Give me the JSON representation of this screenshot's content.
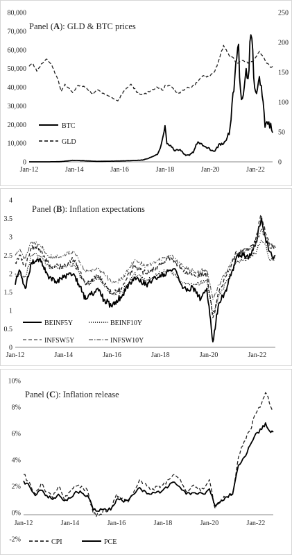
{
  "chart_data": [
    {
      "type": "line",
      "panel_letter": "A",
      "title_prefix": "Panel (",
      "title_suffix": "): GLD & BTC prices",
      "x_ticks": [
        "Jan-12",
        "Jan-14",
        "Jan-16",
        "Jan-18",
        "Jan-20",
        "Jan-22"
      ],
      "ylim": [
        0,
        80000
      ],
      "y_ticks": [
        "0",
        "10,000",
        "20,000",
        "30,000",
        "40,000",
        "50,000",
        "60,000",
        "70,000",
        "80,000"
      ],
      "y2lim": [
        0,
        250
      ],
      "y2_ticks": [
        "0",
        "50",
        "100",
        "150",
        "200",
        "250"
      ],
      "legend": [
        "BTC",
        "GLD"
      ],
      "series": [
        {
          "name": "BTC",
          "axis": "left",
          "style": "solid",
          "x": [
            "2012-01",
            "2013-01",
            "2013-06",
            "2013-12",
            "2014-06",
            "2015-01",
            "2016-01",
            "2016-06",
            "2017-01",
            "2017-06",
            "2017-09",
            "2017-11",
            "2017-12",
            "2018-01",
            "2018-02",
            "2018-04",
            "2018-06",
            "2018-09",
            "2018-12",
            "2019-02",
            "2019-04",
            "2019-06",
            "2019-07",
            "2019-09",
            "2019-12",
            "2020-03",
            "2020-06",
            "2020-09",
            "2020-11",
            "2020-12",
            "2021-01",
            "2021-02",
            "2021-03",
            "2021-04",
            "2021-05",
            "2021-06",
            "2021-07",
            "2021-08",
            "2021-09",
            "2021-10",
            "2021-11",
            "2021-12",
            "2022-01",
            "2022-02",
            "2022-03",
            "2022-04",
            "2022-05",
            "2022-06",
            "2022-07",
            "2022-08",
            "2022-09",
            "2022-10"
          ],
          "values": [
            10,
            20,
            100,
            800,
            600,
            250,
            430,
            650,
            950,
            2500,
            4000,
            9000,
            14000,
            18000,
            9500,
            8500,
            6400,
            6500,
            3500,
            3800,
            5200,
            10000,
            11000,
            8300,
            7200,
            5500,
            9400,
            10600,
            16000,
            24000,
            34000,
            48000,
            57000,
            60000,
            38000,
            35000,
            40000,
            47000,
            44000,
            61000,
            67000,
            48000,
            38000,
            40000,
            45000,
            41000,
            30000,
            20000,
            22000,
            20000,
            19500,
            16000
          ]
        },
        {
          "name": "GLD",
          "axis": "right",
          "style": "dashed",
          "x": [
            "2012-01",
            "2012-03",
            "2012-05",
            "2012-08",
            "2012-10",
            "2013-01",
            "2013-04",
            "2013-06",
            "2013-08",
            "2013-12",
            "2014-03",
            "2014-07",
            "2014-11",
            "2015-01",
            "2015-06",
            "2015-12",
            "2016-03",
            "2016-07",
            "2016-11",
            "2017-01",
            "2017-06",
            "2017-09",
            "2017-12",
            "2018-01",
            "2018-04",
            "2018-08",
            "2018-12",
            "2019-03",
            "2019-06",
            "2019-09",
            "2019-12",
            "2020-03",
            "2020-05",
            "2020-08",
            "2020-11",
            "2021-01",
            "2021-03",
            "2021-06",
            "2021-09",
            "2021-12",
            "2022-03",
            "2022-05",
            "2022-07",
            "2022-09",
            "2022-10"
          ],
          "values": [
            160,
            165,
            152,
            165,
            172,
            162,
            140,
            118,
            130,
            116,
            128,
            125,
            113,
            121,
            112,
            102,
            118,
            130,
            113,
            112,
            120,
            125,
            120,
            128,
            128,
            114,
            123,
            124,
            133,
            144,
            142,
            150,
            165,
            195,
            178,
            175,
            163,
            170,
            165,
            170,
            185,
            175,
            165,
            158,
            160
          ]
        }
      ]
    },
    {
      "type": "line",
      "panel_letter": "B",
      "title_prefix": "Panel (",
      "title_suffix": "): Inflation expectations",
      "x_ticks": [
        "Jan-12",
        "Jan-14",
        "Jan-16",
        "Jan-18",
        "Jan-20",
        "Jan-22"
      ],
      "ylim": [
        0,
        4
      ],
      "y_ticks": [
        "0",
        "0.5",
        "1",
        "1.5",
        "2",
        "2.5",
        "3",
        "3.5",
        "4"
      ],
      "legend": [
        "BEINF5Y",
        "BEINF10Y",
        "INFSW5Y",
        "INFSW10Y"
      ],
      "series": [
        {
          "name": "BEINF5Y",
          "style": "solid",
          "x": [
            "2012-01",
            "2012-03",
            "2012-06",
            "2012-09",
            "2013-01",
            "2013-06",
            "2013-09",
            "2014-01",
            "2014-06",
            "2014-12",
            "2015-06",
            "2015-09",
            "2016-01",
            "2016-06",
            "2016-12",
            "2017-06",
            "2017-12",
            "2018-06",
            "2018-09",
            "2018-12",
            "2019-06",
            "2019-09",
            "2019-12",
            "2020-03",
            "2020-06",
            "2020-09",
            "2020-12",
            "2021-03",
            "2021-06",
            "2021-09",
            "2021-12",
            "2022-03",
            "2022-05",
            "2022-07",
            "2022-09",
            "2022-10"
          ],
          "values": [
            1.7,
            2.1,
            1.6,
            2.3,
            2.4,
            1.9,
            1.8,
            1.9,
            2.0,
            1.3,
            1.6,
            1.3,
            1.1,
            1.4,
            1.9,
            1.7,
            1.9,
            2.1,
            2.05,
            1.6,
            1.6,
            1.3,
            1.6,
            0.15,
            1.2,
            1.5,
            1.95,
            2.5,
            2.5,
            2.45,
            2.75,
            3.5,
            3.0,
            2.6,
            2.4,
            2.5
          ]
        },
        {
          "name": "BEINF10Y",
          "style": "dotted",
          "x": [
            "2012-01",
            "2012-06",
            "2012-09",
            "2013-01",
            "2013-06",
            "2014-01",
            "2014-06",
            "2014-12",
            "2015-06",
            "2016-01",
            "2016-06",
            "2016-12",
            "2017-06",
            "2017-12",
            "2018-06",
            "2018-12",
            "2019-06",
            "2019-12",
            "2020-03",
            "2020-06",
            "2020-12",
            "2021-03",
            "2021-06",
            "2021-12",
            "2022-03",
            "2022-05",
            "2022-07",
            "2022-10"
          ],
          "values": [
            2.0,
            1.9,
            2.5,
            2.5,
            2.15,
            2.2,
            2.25,
            1.7,
            1.9,
            1.45,
            1.5,
            2.0,
            1.8,
            2.0,
            2.1,
            1.75,
            1.7,
            1.8,
            0.9,
            1.4,
            2.0,
            2.35,
            2.35,
            2.55,
            2.9,
            2.8,
            2.4,
            2.4
          ]
        },
        {
          "name": "INFSW5Y",
          "style": "dashed",
          "x": [
            "2012-01",
            "2012-03",
            "2012-06",
            "2012-09",
            "2013-01",
            "2013-06",
            "2014-01",
            "2014-06",
            "2014-12",
            "2015-06",
            "2016-01",
            "2016-06",
            "2016-12",
            "2017-06",
            "2017-12",
            "2018-06",
            "2018-12",
            "2019-06",
            "2019-12",
            "2020-03",
            "2020-06",
            "2020-12",
            "2021-03",
            "2021-06",
            "2021-12",
            "2022-03",
            "2022-05",
            "2022-07",
            "2022-10"
          ],
          "values": [
            2.3,
            2.5,
            2.2,
            2.7,
            2.7,
            2.2,
            2.2,
            2.4,
            1.7,
            1.95,
            1.45,
            1.65,
            2.2,
            2.0,
            2.2,
            2.45,
            2.1,
            1.95,
            2.0,
            0.8,
            1.5,
            2.2,
            2.6,
            2.6,
            2.85,
            3.6,
            3.1,
            2.8,
            2.7
          ]
        },
        {
          "name": "INFSW10Y",
          "style": "dashdot",
          "x": [
            "2012-01",
            "2012-03",
            "2012-06",
            "2012-09",
            "2013-01",
            "2013-06",
            "2014-01",
            "2014-06",
            "2014-12",
            "2015-06",
            "2016-01",
            "2016-06",
            "2016-12",
            "2017-06",
            "2017-12",
            "2018-06",
            "2018-12",
            "2019-06",
            "2019-12",
            "2020-03",
            "2020-06",
            "2020-12",
            "2021-03",
            "2021-06",
            "2021-12",
            "2022-03",
            "2022-05",
            "2022-07",
            "2022-10"
          ],
          "values": [
            2.5,
            2.65,
            2.4,
            2.85,
            2.8,
            2.45,
            2.5,
            2.6,
            2.05,
            2.15,
            1.75,
            1.85,
            2.35,
            2.2,
            2.35,
            2.5,
            2.2,
            2.05,
            2.1,
            1.3,
            1.7,
            2.3,
            2.55,
            2.6,
            2.75,
            3.2,
            3.0,
            2.75,
            2.7
          ]
        }
      ]
    },
    {
      "type": "line",
      "panel_letter": "C",
      "title_prefix": "Panel (",
      "title_suffix": "): Inflation release",
      "x_ticks": [
        "Jan-12",
        "Jan-14",
        "Jan-16",
        "Jan-18",
        "Jan-20",
        "Jan-22"
      ],
      "ylim": [
        -2,
        10
      ],
      "y_ticks": [
        "-2%",
        "0%",
        "2%",
        "4%",
        "6%",
        "8%",
        "10%"
      ],
      "legend": [
        "CPI",
        "PCE"
      ],
      "series": [
        {
          "name": "CPI",
          "style": "dashed",
          "x": [
            "2012-01",
            "2012-04",
            "2012-07",
            "2012-10",
            "2013-01",
            "2013-04",
            "2013-07",
            "2013-10",
            "2014-01",
            "2014-04",
            "2014-07",
            "2014-10",
            "2015-01",
            "2015-04",
            "2015-07",
            "2015-10",
            "2016-01",
            "2016-04",
            "2016-07",
            "2016-10",
            "2017-01",
            "2017-04",
            "2017-07",
            "2017-10",
            "2018-01",
            "2018-04",
            "2018-07",
            "2018-10",
            "2019-01",
            "2019-04",
            "2019-07",
            "2019-10",
            "2020-01",
            "2020-04",
            "2020-07",
            "2020-10",
            "2021-01",
            "2021-04",
            "2021-07",
            "2021-10",
            "2022-01",
            "2022-04",
            "2022-06",
            "2022-08",
            "2022-10"
          ],
          "values": [
            2.9,
            2.3,
            1.4,
            2.2,
            1.6,
            1.1,
            2.0,
            1.0,
            1.6,
            2.0,
            2.0,
            1.7,
            -0.1,
            -0.2,
            0.2,
            0.2,
            1.4,
            1.1,
            0.8,
            1.6,
            2.5,
            2.2,
            1.7,
            2.0,
            2.1,
            2.5,
            2.9,
            2.5,
            1.6,
            2.0,
            1.8,
            1.8,
            2.5,
            0.3,
            1.0,
            1.2,
            1.4,
            4.2,
            5.4,
            6.2,
            7.5,
            8.3,
            9.1,
            8.3,
            7.7
          ]
        },
        {
          "name": "PCE",
          "style": "solid",
          "x": [
            "2012-01",
            "2012-04",
            "2012-07",
            "2012-10",
            "2013-01",
            "2013-04",
            "2013-07",
            "2013-10",
            "2014-01",
            "2014-04",
            "2014-07",
            "2014-10",
            "2015-01",
            "2015-04",
            "2015-07",
            "2015-10",
            "2016-01",
            "2016-04",
            "2016-07",
            "2016-10",
            "2017-01",
            "2017-04",
            "2017-07",
            "2017-10",
            "2018-01",
            "2018-04",
            "2018-07",
            "2018-10",
            "2019-01",
            "2019-04",
            "2019-07",
            "2019-10",
            "2020-01",
            "2020-04",
            "2020-07",
            "2020-10",
            "2021-01",
            "2021-04",
            "2021-07",
            "2021-10",
            "2022-01",
            "2022-04",
            "2022-06",
            "2022-08",
            "2022-10"
          ],
          "values": [
            2.4,
            2.0,
            1.3,
            1.7,
            1.3,
            1.0,
            1.4,
            0.9,
            1.1,
            1.6,
            1.5,
            1.3,
            0.2,
            0.1,
            0.3,
            0.2,
            1.0,
            0.9,
            0.9,
            1.4,
            1.9,
            1.6,
            1.4,
            1.6,
            1.7,
            2.0,
            2.3,
            1.9,
            1.4,
            1.5,
            1.4,
            1.4,
            1.8,
            0.5,
            0.9,
            1.2,
            1.4,
            3.6,
            4.2,
            5.1,
            6.0,
            6.3,
            6.8,
            6.2,
            6.1
          ]
        }
      ]
    }
  ]
}
